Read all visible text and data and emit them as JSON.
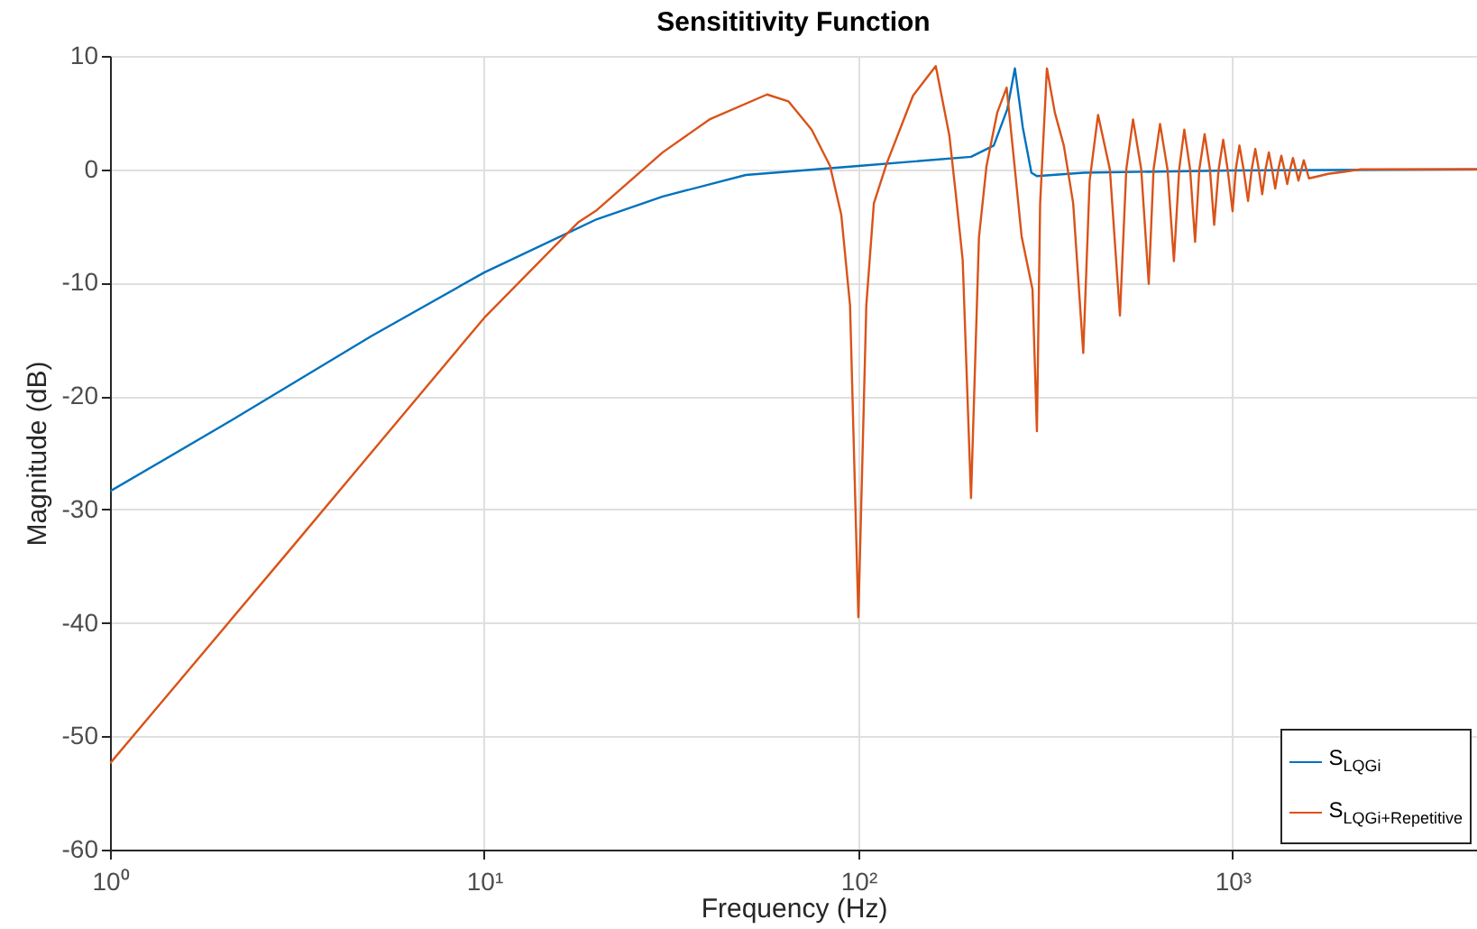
{
  "chart_data": {
    "type": "line",
    "title": "Sensititivity Function",
    "xlabel": "Frequency (Hz)",
    "ylabel": "Magnitude (dB)",
    "log": "x",
    "grid": true,
    "legend": "bottom right",
    "line_style": "solid",
    "marker": "none",
    "xlim": [
      1,
      4500
    ],
    "xticks": [
      {
        "value": 1,
        "label": "10⁰"
      },
      {
        "value": 10,
        "label": "10¹"
      },
      {
        "value": 100,
        "label": "10²"
      },
      {
        "value": 1000,
        "label": "10³"
      }
    ],
    "ylim": [
      -60,
      10
    ],
    "yticks": [
      -60,
      -50,
      -40,
      -30,
      -20,
      -10,
      0,
      10
    ],
    "series": [
      {
        "name": "S$_{LQGi}$",
        "color": "#0072bd",
        "x": [
          1,
          2,
          5,
          10,
          20,
          30,
          50,
          100,
          200,
          230,
          250,
          262,
          275,
          290,
          300,
          400,
          1000,
          4500
        ],
        "values": [
          -28.4,
          -22.6,
          -14.7,
          -9.1,
          -4.4,
          -2.4,
          -0.5,
          0.3,
          1.1,
          2.1,
          5.3,
          8.9,
          3.7,
          -0.3,
          -0.6,
          -0.3,
          -0.1,
          0
        ]
      },
      {
        "name": "S$_{LQGi+Repetitive}$",
        "color": "#d95319",
        "x": [
          1,
          3,
          10,
          17.8,
          20,
          30,
          40,
          57,
          65,
          75,
          84,
          90,
          95,
          100,
          105,
          110,
          119,
          140,
          161,
          175,
          182,
          190,
          200,
          210,
          220,
          235,
          249,
          262,
          273,
          292,
          300,
          306,
          319,
          335,
          354,
          375,
          399,
          415,
          437,
          470,
          500,
          520,
          542,
          570,
          597,
          615,
          640,
          670,
          697,
          720,
          743,
          770,
          794,
          815,
          842,
          870,
          893,
          918,
          944,
          970,
          1000,
          1020,
          1043,
          1070,
          1100,
          1125,
          1150,
          1175,
          1200,
          1225,
          1250,
          1275,
          1300,
          1325,
          1350,
          1375,
          1400,
          1425,
          1450,
          1475,
          1500,
          1550,
          1600,
          1700,
          1800,
          1900,
          2000,
          2200,
          4500
        ],
        "values": [
          -52.4,
          -33.7,
          -13.1,
          -4.7,
          -3.6,
          1.5,
          4.4,
          6.6,
          6.0,
          3.5,
          0.3,
          -4,
          -12,
          -39.5,
          -12,
          -3,
          0.5,
          6.5,
          9.1,
          3,
          -2.1,
          -8,
          -29,
          -6,
          0.3,
          5,
          7.2,
          0,
          -5.9,
          -10.6,
          -23.1,
          -3,
          8.9,
          5,
          2.1,
          -3,
          -16.2,
          -1,
          4.8,
          0,
          -12.9,
          0,
          4.4,
          0,
          -10.1,
          0,
          4.0,
          0,
          -8.1,
          0,
          3.5,
          0,
          -6.4,
          0,
          3.1,
          0,
          -4.9,
          0,
          2.6,
          0,
          -3.7,
          0,
          2.1,
          0,
          -2.8,
          0,
          1.8,
          0,
          -2.2,
          0,
          1.5,
          0,
          -1.7,
          0,
          1.2,
          0,
          -1.3,
          0,
          1.0,
          0,
          -1.0,
          0.8,
          -0.8,
          -0.6,
          -0.4,
          -0.3,
          -0.2,
          0,
          0
        ]
      }
    ]
  }
}
